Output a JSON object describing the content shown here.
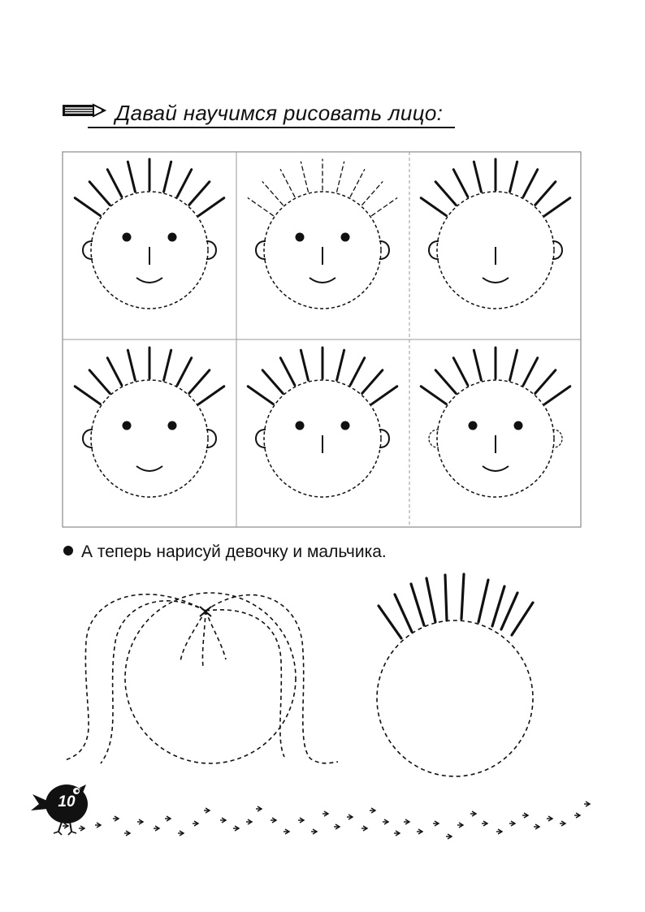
{
  "heading": {
    "title": "Давай научимся рисовать лицо:",
    "icon": "pencil-icon"
  },
  "grid": {
    "rows": 2,
    "columns": 3,
    "cells": [
      {
        "hair": "solid",
        "eyes": true,
        "nose": true,
        "mouth": true,
        "ears": "solid"
      },
      {
        "hair": "dashed",
        "eyes": true,
        "nose": true,
        "mouth": true,
        "ears": "solid"
      },
      {
        "hair": "solid",
        "eyes": false,
        "nose": true,
        "mouth": true,
        "ears": "solid"
      },
      {
        "hair": "solid",
        "eyes": true,
        "nose": false,
        "mouth": true,
        "ears": "solid"
      },
      {
        "hair": "solid",
        "eyes": true,
        "nose": true,
        "mouth": false,
        "ears": "solid"
      },
      {
        "hair": "solid",
        "eyes": true,
        "nose": true,
        "mouth": true,
        "ears": "dashed"
      }
    ]
  },
  "instruction": {
    "text": "А теперь нарисуй девочку и мальчика.",
    "bullet_icon": "bullet-dot-icon"
  },
  "footer": {
    "page_number": "10",
    "mascot_icon": "bird-icon",
    "decoration_icon": "footprints-icon"
  }
}
